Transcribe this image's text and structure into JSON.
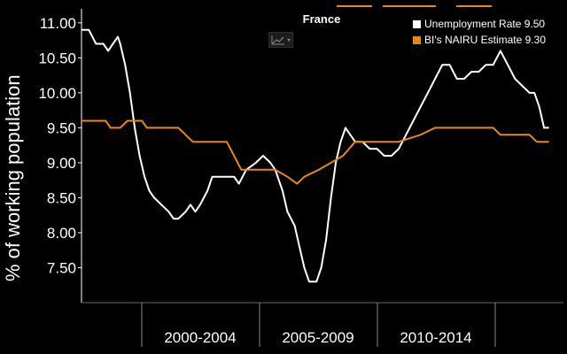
{
  "chart_data": {
    "type": "line",
    "title": "France",
    "ylabel": "% of working population",
    "ylim": [
      7.0,
      11.2
    ],
    "yticks": [
      "11.00",
      "10.50",
      "10.00",
      "9.50",
      "9.00",
      "8.50",
      "8.00",
      "7.50"
    ],
    "x_periods": [
      "2000-2004",
      "2005-2009",
      "2010-2014"
    ],
    "grid": false,
    "legend_position": "top-right",
    "series": [
      {
        "name": "Unemployment Rate",
        "last_value": "9.50",
        "color": "#ffffff",
        "points": [
          [
            1998.0,
            10.9
          ],
          [
            1998.3,
            10.9
          ],
          [
            1998.6,
            10.7
          ],
          [
            1998.9,
            10.7
          ],
          [
            1999.1,
            10.6
          ],
          [
            1999.3,
            10.7
          ],
          [
            1999.5,
            10.8
          ],
          [
            1999.6,
            10.7
          ],
          [
            1999.8,
            10.4
          ],
          [
            2000.0,
            10.0
          ],
          [
            2000.2,
            9.5
          ],
          [
            2000.4,
            9.1
          ],
          [
            2000.6,
            8.8
          ],
          [
            2000.8,
            8.6
          ],
          [
            2001.0,
            8.5
          ],
          [
            2001.3,
            8.4
          ],
          [
            2001.6,
            8.3
          ],
          [
            2001.8,
            8.2
          ],
          [
            2002.0,
            8.2
          ],
          [
            2002.3,
            8.3
          ],
          [
            2002.5,
            8.4
          ],
          [
            2002.7,
            8.3
          ],
          [
            2002.9,
            8.4
          ],
          [
            2003.2,
            8.6
          ],
          [
            2003.4,
            8.8
          ],
          [
            2003.7,
            8.8
          ],
          [
            2004.0,
            8.8
          ],
          [
            2004.3,
            8.8
          ],
          [
            2004.5,
            8.7
          ],
          [
            2004.8,
            8.9
          ],
          [
            2005.2,
            9.0
          ],
          [
            2005.5,
            9.1
          ],
          [
            2005.8,
            9.0
          ],
          [
            2006.0,
            8.9
          ],
          [
            2006.3,
            8.6
          ],
          [
            2006.5,
            8.3
          ],
          [
            2006.8,
            8.1
          ],
          [
            2007.0,
            7.8
          ],
          [
            2007.2,
            7.5
          ],
          [
            2007.4,
            7.3
          ],
          [
            2007.7,
            7.3
          ],
          [
            2007.9,
            7.5
          ],
          [
            2008.1,
            7.9
          ],
          [
            2008.3,
            8.5
          ],
          [
            2008.5,
            9.0
          ],
          [
            2008.7,
            9.3
          ],
          [
            2008.9,
            9.5
          ],
          [
            2009.1,
            9.4
          ],
          [
            2009.3,
            9.3
          ],
          [
            2009.6,
            9.3
          ],
          [
            2009.9,
            9.2
          ],
          [
            2010.2,
            9.2
          ],
          [
            2010.5,
            9.1
          ],
          [
            2010.8,
            9.1
          ],
          [
            2011.1,
            9.2
          ],
          [
            2011.4,
            9.4
          ],
          [
            2011.7,
            9.6
          ],
          [
            2012.0,
            9.8
          ],
          [
            2012.3,
            10.0
          ],
          [
            2012.6,
            10.2
          ],
          [
            2012.9,
            10.4
          ],
          [
            2013.2,
            10.4
          ],
          [
            2013.5,
            10.2
          ],
          [
            2013.8,
            10.2
          ],
          [
            2014.1,
            10.3
          ],
          [
            2014.4,
            10.3
          ],
          [
            2014.7,
            10.4
          ],
          [
            2015.0,
            10.4
          ],
          [
            2015.3,
            10.6
          ],
          [
            2015.6,
            10.4
          ],
          [
            2015.9,
            10.2
          ],
          [
            2016.2,
            10.1
          ],
          [
            2016.5,
            10.0
          ],
          [
            2016.7,
            10.0
          ],
          [
            2016.9,
            9.8
          ],
          [
            2017.1,
            9.5
          ],
          [
            2017.3,
            9.5
          ]
        ]
      },
      {
        "name": "BI's NAIRU Estimate",
        "last_value": "9.30",
        "color": "#e8880c",
        "points": [
          [
            1998.0,
            9.6
          ],
          [
            1999.0,
            9.6
          ],
          [
            1999.2,
            9.5
          ],
          [
            1999.6,
            9.5
          ],
          [
            1999.9,
            9.6
          ],
          [
            2000.5,
            9.6
          ],
          [
            2000.7,
            9.5
          ],
          [
            2002.0,
            9.5
          ],
          [
            2002.3,
            9.4
          ],
          [
            2002.6,
            9.3
          ],
          [
            2004.0,
            9.3
          ],
          [
            2004.3,
            9.1
          ],
          [
            2004.6,
            8.9
          ],
          [
            2006.0,
            8.9
          ],
          [
            2006.5,
            8.8
          ],
          [
            2006.9,
            8.7
          ],
          [
            2007.2,
            8.8
          ],
          [
            2007.8,
            8.9
          ],
          [
            2008.3,
            9.0
          ],
          [
            2008.8,
            9.1
          ],
          [
            2009.3,
            9.3
          ],
          [
            2010.0,
            9.3
          ],
          [
            2010.6,
            9.3
          ],
          [
            2011.1,
            9.3
          ],
          [
            2012.0,
            9.4
          ],
          [
            2012.6,
            9.5
          ],
          [
            2015.0,
            9.5
          ],
          [
            2015.3,
            9.4
          ],
          [
            2016.5,
            9.4
          ],
          [
            2016.8,
            9.3
          ],
          [
            2017.3,
            9.3
          ]
        ]
      }
    ]
  },
  "legend": {
    "items": [
      {
        "label": "Unemployment Rate 9.50",
        "color": "#ffffff"
      },
      {
        "label": "BI's NAIRU Estimate 9.30",
        "color": "#e8880c"
      }
    ]
  },
  "toolbar": {
    "chart_icon": "line-chart-icon"
  }
}
